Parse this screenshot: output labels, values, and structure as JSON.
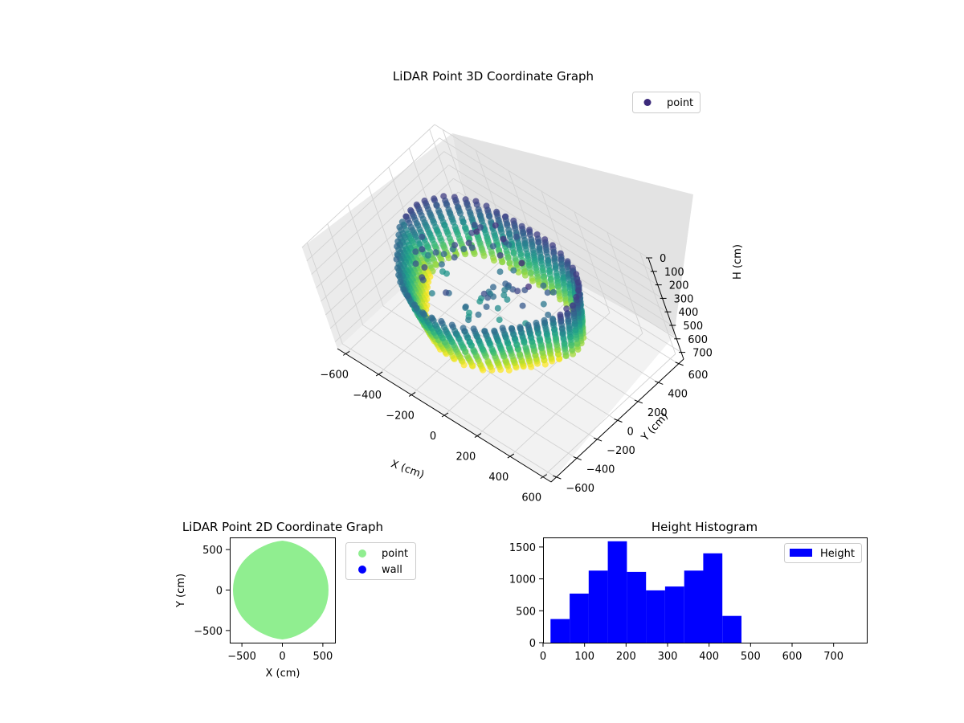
{
  "chart_data": [
    {
      "id": "scatter3d",
      "type": "scatter",
      "title": "LiDAR Point 3D Coordinate Graph",
      "xlabel": "X (cm)",
      "ylabel": "Y (cm)",
      "zlabel": "H (cm)",
      "xlim": [
        -650,
        650
      ],
      "ylim": [
        -650,
        650
      ],
      "zlim": [
        0,
        750
      ],
      "z_inverted": true,
      "x_ticks": [
        "−600",
        "−400",
        "−200",
        "0",
        "200",
        "400",
        "600"
      ],
      "y_ticks": [
        "−600",
        "−400",
        "−200",
        "0",
        "200",
        "400",
        "600"
      ],
      "z_ticks": [
        "0",
        "100",
        "200",
        "300",
        "400",
        "500",
        "600",
        "700"
      ],
      "x_tick_values": [
        -600,
        -400,
        -200,
        0,
        200,
        400,
        600
      ],
      "y_tick_values": [
        -600,
        -400,
        -200,
        0,
        200,
        400,
        600
      ],
      "z_tick_values": [
        0,
        100,
        200,
        300,
        400,
        500,
        600,
        700
      ],
      "colormap": "viridis",
      "legend": [
        {
          "label": "point",
          "color": "#3b2a7a"
        }
      ],
      "legend_position": "top-right",
      "grid": true
    },
    {
      "id": "scatter2d",
      "type": "scatter",
      "title": "LiDAR Point 2D Coordinate Graph",
      "xlabel": "X (cm)",
      "ylabel": "Y (cm)",
      "xlim": [
        -650,
        650
      ],
      "ylim": [
        -650,
        650
      ],
      "x_ticks": [
        "−500",
        "0",
        "500"
      ],
      "y_ticks": [
        "500",
        "0",
        "−500"
      ],
      "x_tick_values": [
        -500,
        0,
        500
      ],
      "y_tick_values": [
        500,
        0,
        -500
      ],
      "legend": [
        {
          "label": "point",
          "color": "#90ee90"
        },
        {
          "label": "wall",
          "color": "#0000ff"
        }
      ],
      "legend_position": "outside-right",
      "point_color": "#90ee90",
      "grid": false
    },
    {
      "id": "histogram",
      "type": "bar",
      "title": "Height Histogram",
      "xlabel": "",
      "ylabel": "",
      "xlim": [
        0,
        780
      ],
      "ylim": [
        0,
        1650
      ],
      "bin_edges": [
        18,
        64,
        110,
        156,
        202,
        248,
        294,
        340,
        386,
        432,
        478
      ],
      "values": [
        370,
        770,
        1130,
        1590,
        1110,
        820,
        880,
        1130,
        1400,
        420
      ],
      "x_ticks": [
        "0",
        "100",
        "200",
        "300",
        "400",
        "500",
        "600",
        "700"
      ],
      "y_ticks": [
        "0",
        "500",
        "1000",
        "1500"
      ],
      "x_tick_values": [
        0,
        100,
        200,
        300,
        400,
        500,
        600,
        700
      ],
      "y_tick_values": [
        0,
        500,
        1000,
        1500
      ],
      "color": "#0000ff",
      "legend": [
        {
          "label": "Height",
          "color": "#0000ff"
        }
      ],
      "legend_position": "top-right",
      "grid": false
    }
  ]
}
